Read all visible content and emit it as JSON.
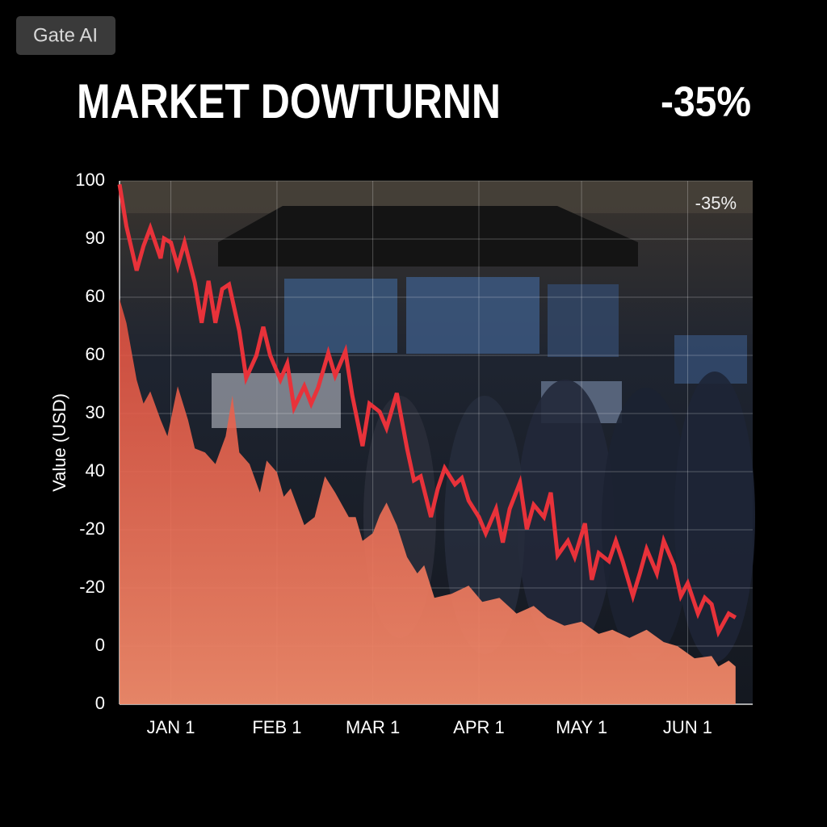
{
  "badge": "Gate AI",
  "chart_data": {
    "type": "line",
    "title": "MARKET DOWTURNN",
    "headline_value": "-35%",
    "annotation": "-35%",
    "y_label": "Value (USD)",
    "xlim": [
      -15,
      170
    ],
    "xticks": [
      {
        "value": 0,
        "label": "JAN 1"
      },
      {
        "value": 31,
        "label": "FEB 1"
      },
      {
        "value": 59,
        "label": "MAR 1"
      },
      {
        "value": 90,
        "label": "APR 1"
      },
      {
        "value": 120,
        "label": "MAY 1"
      },
      {
        "value": 151,
        "label": "JUN 1"
      }
    ],
    "ylim": [
      0,
      9
    ],
    "yticks": [
      {
        "value": 9,
        "label": "100"
      },
      {
        "value": 8,
        "label": "90"
      },
      {
        "value": 7,
        "label": "60"
      },
      {
        "value": 6,
        "label": "60"
      },
      {
        "value": 5,
        "label": "30"
      },
      {
        "value": 4,
        "label": "40"
      },
      {
        "value": 3,
        "label": "-20"
      },
      {
        "value": 2,
        "label": "-20"
      },
      {
        "value": 1,
        "label": "0"
      },
      {
        "value": 0,
        "label": "0"
      }
    ],
    "grid": true,
    "series": [
      {
        "color": "#e8503f",
        "fill": true,
        "x": [
          -15,
          -13,
          -10,
          -8,
          -6,
          -3,
          -1,
          2,
          5,
          7,
          10,
          13,
          16,
          18,
          20,
          23,
          26,
          28,
          31,
          33,
          35,
          39,
          42,
          45,
          48,
          52,
          54,
          56,
          59,
          61,
          63,
          66,
          69,
          72,
          74,
          77,
          82,
          87,
          91,
          96,
          101,
          106,
          110,
          115,
          120,
          125,
          129,
          134,
          139,
          144,
          148,
          153,
          158,
          160,
          163,
          165
        ],
        "values": [
          6.97,
          6.56,
          5.58,
          5.17,
          5.38,
          4.89,
          4.61,
          5.47,
          4.89,
          4.4,
          4.33,
          4.13,
          4.61,
          5.31,
          4.33,
          4.13,
          3.64,
          4.19,
          3.99,
          3.57,
          3.71,
          3.08,
          3.22,
          3.92,
          3.64,
          3.22,
          3.22,
          2.81,
          2.94,
          3.25,
          3.47,
          3.08,
          2.53,
          2.25,
          2.39,
          1.83,
          1.9,
          2.04,
          1.76,
          1.83,
          1.56,
          1.69,
          1.49,
          1.35,
          1.42,
          1.21,
          1.28,
          1.14,
          1.28,
          1.07,
          1.0,
          0.79,
          0.83,
          0.65,
          0.75,
          0.65
        ]
      },
      {
        "color": "#e8323a",
        "fill": false,
        "x": [
          -15,
          -13,
          -10,
          -8,
          -6,
          -3,
          -2,
          0,
          2,
          4,
          7,
          9,
          11,
          13,
          15,
          17,
          20,
          22,
          25,
          27,
          29,
          32,
          34,
          36,
          39,
          41,
          43,
          46,
          48,
          51,
          53,
          56,
          58,
          61,
          63,
          66,
          69,
          71,
          73,
          76,
          78,
          80,
          83,
          85,
          87,
          90,
          92,
          95,
          97,
          99,
          102,
          104,
          106,
          109,
          111,
          113,
          116,
          118,
          121,
          123,
          125,
          128,
          130,
          132,
          135,
          137,
          139,
          142,
          144,
          147,
          149,
          151,
          154,
          156,
          158,
          160,
          163,
          165
        ],
        "values": [
          8.94,
          8.22,
          7.46,
          7.88,
          8.19,
          7.67,
          8.01,
          7.94,
          7.53,
          7.94,
          7.25,
          6.56,
          7.28,
          6.56,
          7.14,
          7.22,
          6.42,
          5.61,
          6.0,
          6.49,
          6.0,
          5.58,
          5.86,
          5.1,
          5.47,
          5.17,
          5.44,
          6.04,
          5.65,
          6.07,
          5.31,
          4.44,
          5.17,
          5.03,
          4.75,
          5.35,
          4.4,
          3.85,
          3.92,
          3.22,
          3.71,
          4.06,
          3.78,
          3.89,
          3.5,
          3.22,
          2.94,
          3.36,
          2.78,
          3.36,
          3.81,
          3.01,
          3.43,
          3.22,
          3.64,
          2.56,
          2.81,
          2.53,
          3.11,
          2.14,
          2.6,
          2.46,
          2.81,
          2.46,
          1.86,
          2.25,
          2.67,
          2.25,
          2.81,
          2.39,
          1.86,
          2.08,
          1.56,
          1.83,
          1.72,
          1.24,
          1.56,
          1.49
        ]
      }
    ]
  }
}
